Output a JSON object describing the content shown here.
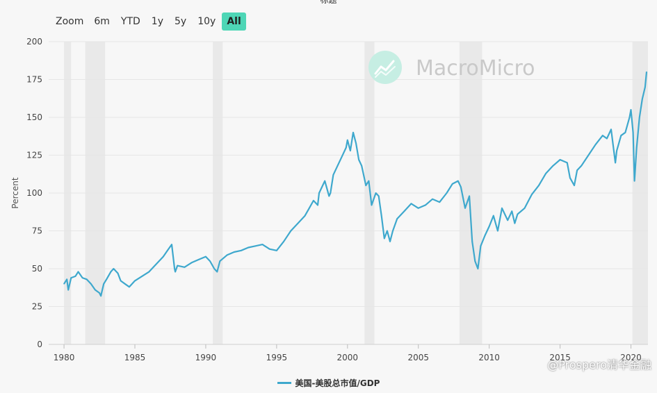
{
  "header": {
    "title_fragment": "标题"
  },
  "zoom": {
    "label": "Zoom",
    "options": [
      "6m",
      "YTD",
      "1y",
      "5y",
      "10y",
      "All"
    ],
    "active": "All"
  },
  "watermark": {
    "brand": "MacroMicro",
    "logo_icon": "macromicro-logo-icon"
  },
  "corner_mark": "@Prospero清华金融",
  "colors": {
    "series": "#3ea8cd",
    "recession": "#e9e9e9",
    "zoom_active": "#4ed6b6",
    "logo": "#c6eee3"
  },
  "chart_data": {
    "type": "line",
    "title": "",
    "xlabel": "",
    "ylabel": "Percent",
    "xlim": [
      1979.8,
      2021.2
    ],
    "ylim": [
      0,
      200
    ],
    "yticks": [
      0,
      25,
      50,
      75,
      100,
      125,
      150,
      175,
      200
    ],
    "xticks": [
      1980,
      1985,
      1990,
      1995,
      2000,
      2005,
      2010,
      2015,
      2020
    ],
    "grid": true,
    "legend": "bottom-center",
    "recessions": [
      [
        1980.0,
        1980.5
      ],
      [
        1981.5,
        1982.9
      ],
      [
        1990.5,
        1991.2
      ],
      [
        2001.2,
        2001.9
      ],
      [
        2007.9,
        2009.5
      ],
      [
        2020.1,
        2021.2
      ]
    ],
    "series": [
      {
        "name": "美国-美股总市值/GDP",
        "x": [
          1980.0,
          1980.2,
          1980.3,
          1980.5,
          1980.8,
          1981.0,
          1981.3,
          1981.6,
          1981.9,
          1982.2,
          1982.5,
          1982.6,
          1982.8,
          1983.0,
          1983.3,
          1983.5,
          1983.8,
          1984.0,
          1984.3,
          1984.6,
          1985.0,
          1985.5,
          1986.0,
          1986.5,
          1987.0,
          1987.3,
          1987.6,
          1987.8,
          1987.85,
          1988.0,
          1988.5,
          1989.0,
          1989.5,
          1990.0,
          1990.3,
          1990.6,
          1990.8,
          1991.0,
          1991.5,
          1992.0,
          1992.5,
          1993.0,
          1993.5,
          1994.0,
          1994.5,
          1995.0,
          1995.5,
          1996.0,
          1996.5,
          1997.0,
          1997.3,
          1997.6,
          1997.9,
          1998.0,
          1998.4,
          1998.7,
          1998.8,
          1999.0,
          1999.3,
          1999.6,
          1999.9,
          2000.0,
          2000.2,
          2000.4,
          2000.6,
          2000.8,
          2001.0,
          2001.3,
          2001.5,
          2001.7,
          2002.0,
          2002.2,
          2002.4,
          2002.6,
          2002.8,
          2003.0,
          2003.2,
          2003.5,
          2004.0,
          2004.5,
          2005.0,
          2005.5,
          2006.0,
          2006.5,
          2007.0,
          2007.4,
          2007.8,
          2008.0,
          2008.3,
          2008.6,
          2008.8,
          2009.0,
          2009.2,
          2009.4,
          2009.7,
          2010.0,
          2010.3,
          2010.6,
          2010.9,
          2011.3,
          2011.6,
          2011.8,
          2012.0,
          2012.5,
          2013.0,
          2013.5,
          2014.0,
          2014.5,
          2015.0,
          2015.5,
          2015.7,
          2016.0,
          2016.2,
          2016.5,
          2017.0,
          2017.5,
          2018.0,
          2018.3,
          2018.6,
          2018.9,
          2019.0,
          2019.3,
          2019.6,
          2019.9,
          2020.0,
          2020.15,
          2020.25,
          2020.4,
          2020.6,
          2020.8,
          2021.0,
          2021.1
        ],
        "y": [
          40,
          43,
          36,
          44,
          45,
          48,
          44,
          43,
          40,
          36,
          34,
          32,
          40,
          43,
          48,
          50,
          47,
          42,
          40,
          38,
          42,
          45,
          48,
          53,
          58,
          62,
          66,
          50,
          48,
          52,
          51,
          54,
          56,
          58,
          55,
          50,
          48,
          55,
          59,
          61,
          62,
          64,
          65,
          66,
          63,
          62,
          68,
          75,
          80,
          85,
          90,
          95,
          92,
          100,
          108,
          98,
          100,
          112,
          118,
          124,
          130,
          135,
          128,
          140,
          133,
          122,
          118,
          105,
          108,
          92,
          100,
          98,
          85,
          70,
          75,
          68,
          75,
          83,
          88,
          93,
          90,
          92,
          96,
          94,
          100,
          106,
          108,
          104,
          90,
          98,
          68,
          55,
          50,
          65,
          72,
          78,
          85,
          75,
          90,
          82,
          88,
          80,
          86,
          90,
          99,
          105,
          113,
          118,
          122,
          120,
          110,
          105,
          115,
          118,
          125,
          132,
          138,
          136,
          142,
          120,
          128,
          138,
          140,
          150,
          155,
          140,
          108,
          130,
          150,
          162,
          170,
          180
        ]
      }
    ]
  }
}
